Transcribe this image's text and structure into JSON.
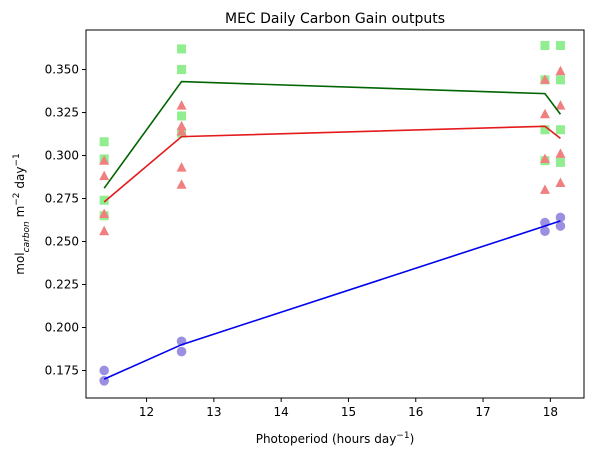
{
  "chart_data": {
    "type": "scatter",
    "title": "MEC Daily Carbon Gain outputs",
    "xlabel": "Photoperiod (hours day⁻¹)",
    "ylabel": "mol_carbon m⁻² day⁻¹",
    "xlim": [
      11.1,
      18.5
    ],
    "ylim": [
      0.159,
      0.373
    ],
    "xticks": [
      12,
      13,
      14,
      15,
      16,
      17,
      18
    ],
    "yticks": [
      0.175,
      0.2,
      0.225,
      0.25,
      0.275,
      0.3,
      0.325,
      0.35
    ],
    "ytick_labels": [
      "0.175",
      "0.200",
      "0.225",
      "0.250",
      "0.275",
      "0.300",
      "0.325",
      "0.350"
    ],
    "grid": false,
    "series": [
      {
        "marker": "square",
        "color": "#90ee90",
        "line_color": "#006400",
        "points": [
          [
            11.37,
            0.308
          ],
          [
            11.37,
            0.298
          ],
          [
            11.37,
            0.274
          ],
          [
            11.37,
            0.265
          ],
          [
            12.52,
            0.362
          ],
          [
            12.52,
            0.35
          ],
          [
            12.52,
            0.35
          ],
          [
            12.52,
            0.323
          ],
          [
            12.52,
            0.313
          ],
          [
            17.92,
            0.364
          ],
          [
            17.92,
            0.344
          ],
          [
            17.92,
            0.315
          ],
          [
            17.92,
            0.297
          ],
          [
            18.15,
            0.364
          ],
          [
            18.15,
            0.344
          ],
          [
            18.15,
            0.315
          ],
          [
            18.15,
            0.296
          ]
        ],
        "line": [
          [
            11.37,
            0.281
          ],
          [
            12.52,
            0.343
          ],
          [
            17.92,
            0.336
          ],
          [
            18.15,
            0.324
          ]
        ]
      },
      {
        "marker": "triangle",
        "color": "#f08080",
        "line_color": "#e41a1c",
        "points": [
          [
            11.37,
            0.297
          ],
          [
            11.37,
            0.288
          ],
          [
            11.37,
            0.266
          ],
          [
            11.37,
            0.256
          ],
          [
            12.52,
            0.329
          ],
          [
            12.52,
            0.317
          ],
          [
            12.52,
            0.314
          ],
          [
            12.52,
            0.293
          ],
          [
            12.52,
            0.283
          ],
          [
            17.92,
            0.344
          ],
          [
            17.92,
            0.324
          ],
          [
            17.92,
            0.298
          ],
          [
            17.92,
            0.28
          ],
          [
            18.15,
            0.349
          ],
          [
            18.15,
            0.329
          ],
          [
            18.15,
            0.301
          ],
          [
            18.15,
            0.284
          ]
        ],
        "line": [
          [
            11.37,
            0.273
          ],
          [
            12.52,
            0.311
          ],
          [
            17.92,
            0.317
          ],
          [
            18.15,
            0.31
          ]
        ]
      },
      {
        "marker": "circle",
        "color": "#9a8fe0",
        "line_color": "#0000ee",
        "points": [
          [
            11.37,
            0.175
          ],
          [
            11.37,
            0.169
          ],
          [
            12.52,
            0.192
          ],
          [
            12.52,
            0.186
          ],
          [
            17.92,
            0.261
          ],
          [
            17.92,
            0.256
          ],
          [
            18.15,
            0.264
          ],
          [
            18.15,
            0.259
          ]
        ],
        "line": [
          [
            11.37,
            0.17
          ],
          [
            12.52,
            0.19
          ],
          [
            17.92,
            0.259
          ],
          [
            18.15,
            0.262
          ]
        ]
      }
    ]
  }
}
